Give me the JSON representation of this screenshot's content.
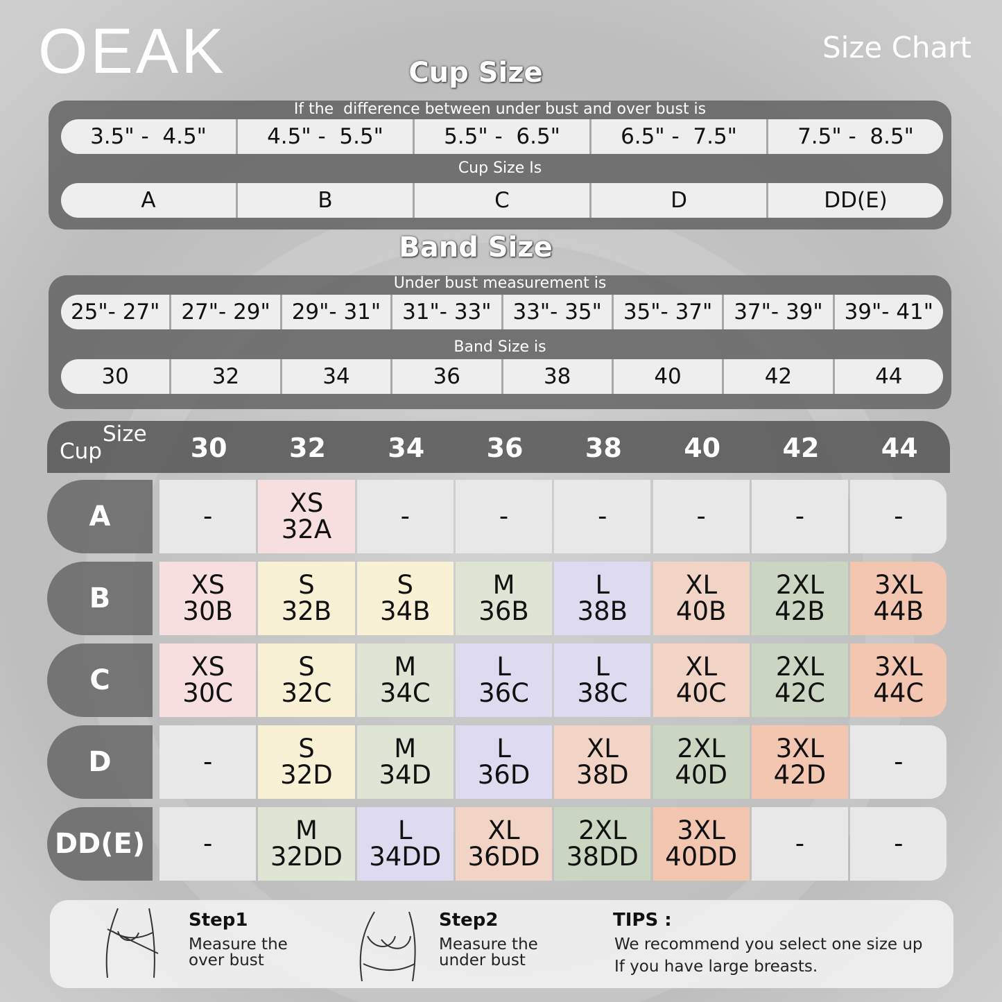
{
  "brand": "OEAK",
  "header": {
    "title": "Size Chart"
  },
  "cup_size": {
    "title": "Cup Size",
    "difference_label": "If the  difference between under bust and over bust is",
    "ranges": [
      "3.5\" -  4.5\"",
      "4.5\" -  5.5\"",
      "5.5\" -  6.5\"",
      "6.5\" -  7.5\"",
      "7.5\" -  8.5\""
    ],
    "result_label": "Cup Size Is",
    "cups": [
      "A",
      "B",
      "C",
      "D",
      "DD(E)"
    ]
  },
  "band_size": {
    "title": "Band Size",
    "measurement_label": "Under bust measurement is",
    "ranges": [
      "25\"- 27\"",
      "27\"- 29\"",
      "29\"- 31\"",
      "31\"- 33\"",
      "33\"- 35\"",
      "35\"- 37\"",
      "37\"- 39\"",
      "39\"- 41\""
    ],
    "result_label": "Band Size is",
    "bands": [
      "30",
      "32",
      "34",
      "36",
      "38",
      "40",
      "42",
      "44"
    ]
  },
  "table": {
    "corner_top": "Size",
    "corner_bottom": "Cup",
    "columns": [
      "30",
      "32",
      "34",
      "36",
      "38",
      "40",
      "42",
      "44"
    ],
    "size_colors": {
      "-": "#e8e8e8",
      "XS": "#f8dfdf",
      "S": "#f8f1d6",
      "M": "#dfe5d4",
      "L": "#dedaf0",
      "XL": "#f2d4c7",
      "2XL": "#cbd6c2",
      "3XL": "#f3c6b2"
    },
    "rows": [
      {
        "cup": "A",
        "cells": [
          [
            "-"
          ],
          [
            "XS",
            "32A"
          ],
          [
            "-"
          ],
          [
            "-"
          ],
          [
            "-"
          ],
          [
            "-"
          ],
          [
            "-"
          ],
          [
            "-"
          ]
        ]
      },
      {
        "cup": "B",
        "cells": [
          [
            "XS",
            "30B"
          ],
          [
            "S",
            "32B"
          ],
          [
            "S",
            "34B"
          ],
          [
            "M",
            "36B"
          ],
          [
            "L",
            "38B"
          ],
          [
            "XL",
            "40B"
          ],
          [
            "2XL",
            "42B"
          ],
          [
            "3XL",
            "44B"
          ]
        ]
      },
      {
        "cup": "C",
        "cells": [
          [
            "XS",
            "30C"
          ],
          [
            "S",
            "32C"
          ],
          [
            "M",
            "34C"
          ],
          [
            "L",
            "36C"
          ],
          [
            "L",
            "38C"
          ],
          [
            "XL",
            "40C"
          ],
          [
            "2XL",
            "42C"
          ],
          [
            "3XL",
            "44C"
          ]
        ]
      },
      {
        "cup": "D",
        "cells": [
          [
            "-"
          ],
          [
            "S",
            "32D"
          ],
          [
            "M",
            "34D"
          ],
          [
            "L",
            "36D"
          ],
          [
            "XL",
            "38D"
          ],
          [
            "2XL",
            "40D"
          ],
          [
            "3XL",
            "42D"
          ],
          [
            "-"
          ]
        ]
      },
      {
        "cup": "DD(E)",
        "cells": [
          [
            "-"
          ],
          [
            "M",
            "32DD"
          ],
          [
            "L",
            "34DD"
          ],
          [
            "XL",
            "36DD"
          ],
          [
            "2XL",
            "38DD"
          ],
          [
            "3XL",
            "40DD"
          ],
          [
            "-"
          ],
          [
            "-"
          ]
        ]
      }
    ]
  },
  "steps": [
    {
      "title": "Step1",
      "lines": [
        "Measure the",
        "over bust"
      ]
    },
    {
      "title": "Step2",
      "lines": [
        "Measure the",
        "under bust"
      ]
    }
  ],
  "tips": {
    "title": "TIPS :",
    "lines": [
      "We recommend you select one size up",
      "If you have large breasts."
    ]
  }
}
